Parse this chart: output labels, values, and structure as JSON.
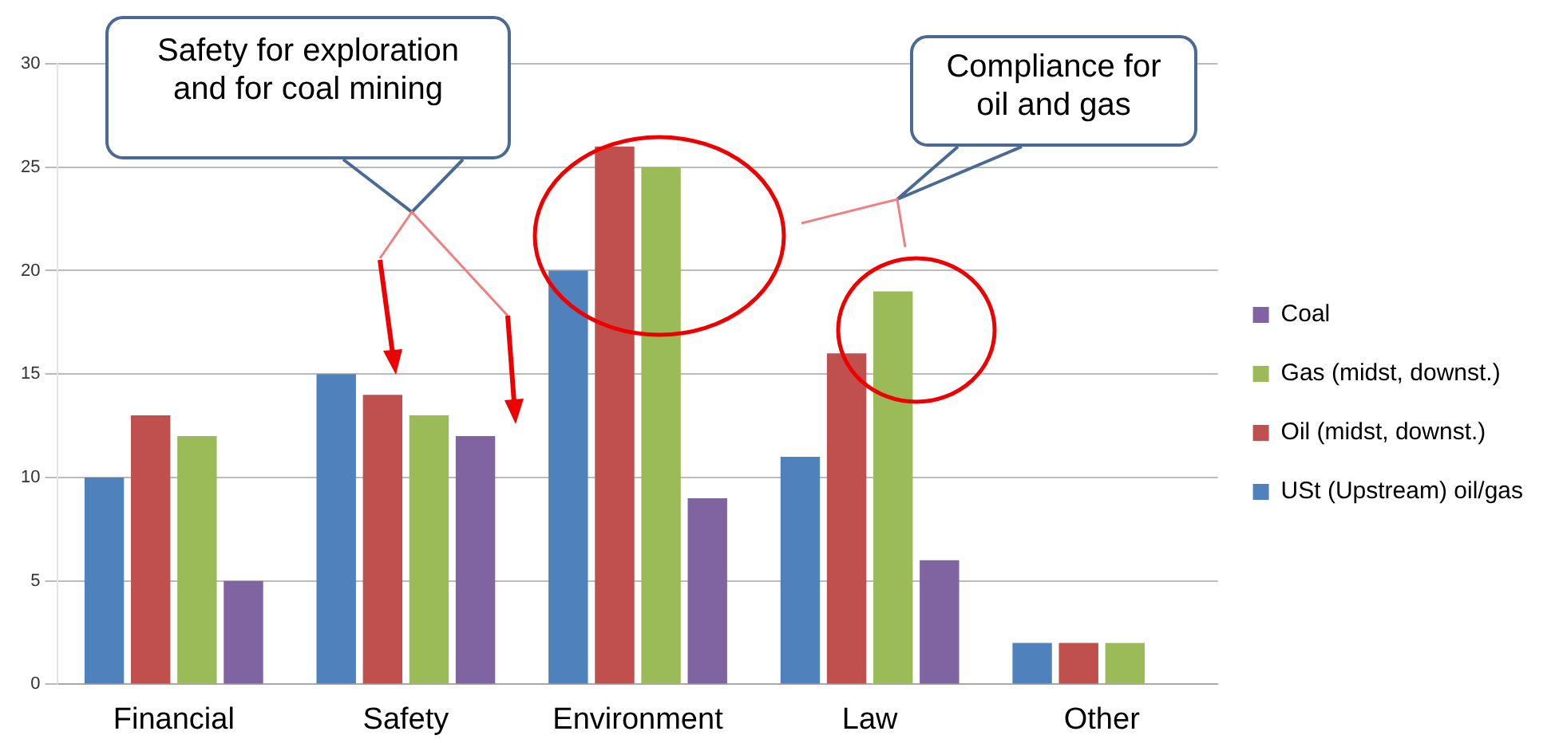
{
  "chart_data": {
    "type": "bar",
    "categories": [
      "Financial",
      "Safety",
      "Environment",
      "Law",
      "Other"
    ],
    "series": [
      {
        "name": "USt (Upstream) oil/gas",
        "color": "#4f81bd",
        "values": [
          10,
          15,
          20,
          11,
          2
        ]
      },
      {
        "name": "Oil (midst, downst.)",
        "color": "#c0504d",
        "values": [
          13,
          14,
          26,
          16,
          2
        ]
      },
      {
        "name": "Gas (midst, downst.)",
        "color": "#9bbb59",
        "values": [
          12,
          13,
          25,
          19,
          2
        ]
      },
      {
        "name": "Coal",
        "color": "#8064a2",
        "values": [
          5,
          12,
          9,
          6,
          0
        ]
      }
    ],
    "ylim": [
      0,
      30
    ],
    "yticks": [
      0,
      5,
      10,
      15,
      20,
      25,
      30
    ],
    "grid": "y",
    "legend": "right",
    "annotations": [
      "Safety for exploration and for coal mining",
      "Compliance for oil and gas"
    ]
  }
}
